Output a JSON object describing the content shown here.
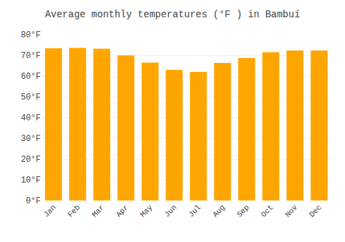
{
  "chart_data": {
    "type": "bar",
    "title": "Average monthly temperatures (°F ) in Bambuí",
    "categories": [
      "Jan",
      "Feb",
      "Mar",
      "Apr",
      "May",
      "Jun",
      "Jul",
      "Aug",
      "Sep",
      "Oct",
      "Nov",
      "Dec"
    ],
    "values": [
      73.4,
      73.6,
      73.2,
      70.0,
      66.5,
      63.0,
      62.0,
      66.3,
      68.7,
      71.5,
      72.3,
      72.3
    ],
    "color": "#FFA500",
    "ylim": [
      0,
      80
    ],
    "yticks": [
      {
        "value": 0,
        "label": "0°F"
      },
      {
        "value": 10,
        "label": "10°F"
      },
      {
        "value": 20,
        "label": "20°F"
      },
      {
        "value": 30,
        "label": "30°F"
      },
      {
        "value": 40,
        "label": "40°F"
      },
      {
        "value": 50,
        "label": "50°F"
      },
      {
        "value": 60,
        "label": "60°F"
      },
      {
        "value": 70,
        "label": "70°F"
      },
      {
        "value": 80,
        "label": "80°F"
      }
    ],
    "grid": true
  }
}
